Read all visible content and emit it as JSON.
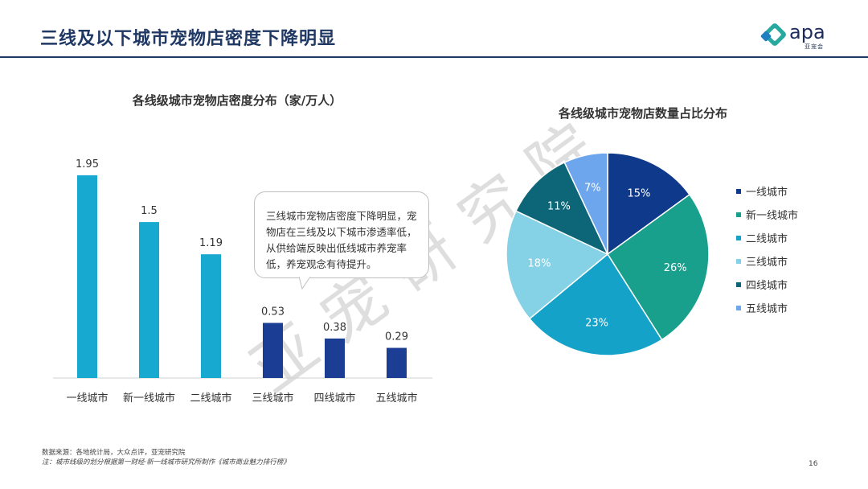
{
  "header": {
    "title": "三线及以下城市宠物店密度下降明显",
    "logo_text": "apa",
    "logo_sub": "亚宠会"
  },
  "watermark": "亚宠研究院",
  "callout": {
    "text": "三线城市宠物店密度下降明显，宠物店在三线及以下城市渗透率低，从供给端反映出低线城市养宠率低，养宠观念有待提升。"
  },
  "footer": {
    "source": "数据来源：各地统计局，大众点评，亚宠研究院",
    "note": "注：城市线级的划分根据第一财经·新一线城市研究所制作《城市商业魅力排行榜》",
    "page_number": "16"
  },
  "chart_data": [
    {
      "type": "bar",
      "title": "各线级城市宠物店密度分布（家/万人）",
      "categories": [
        "一线城市",
        "新一线城市",
        "二线城市",
        "三线城市",
        "四线城市",
        "五线城市"
      ],
      "values": [
        1.95,
        1.5,
        1.19,
        0.53,
        0.38,
        0.29
      ],
      "value_labels": [
        "1.95",
        "1.5",
        "1.19",
        "0.53",
        "0.38",
        "0.29"
      ],
      "colors": [
        "#17a9cf",
        "#17a9cf",
        "#17a9cf",
        "#1c3d94",
        "#1c3d94",
        "#1c3d94"
      ],
      "ylim": [
        0,
        2.05
      ],
      "xlabel": "",
      "ylabel": ""
    },
    {
      "type": "pie",
      "title": "各线级城市宠物店数量占比分布",
      "labels": [
        "一线城市",
        "新一线城市",
        "二线城市",
        "三线城市",
        "四线城市",
        "五线城市"
      ],
      "values": [
        15,
        26,
        23,
        18,
        11,
        7
      ],
      "value_labels": [
        "15%",
        "26%",
        "23%",
        "18%",
        "11%",
        "7%"
      ],
      "colors": [
        "#0f3a8c",
        "#19a08c",
        "#15a2c8",
        "#85d2e6",
        "#0d6678",
        "#6ea6ee"
      ],
      "legend_position": "right"
    }
  ]
}
